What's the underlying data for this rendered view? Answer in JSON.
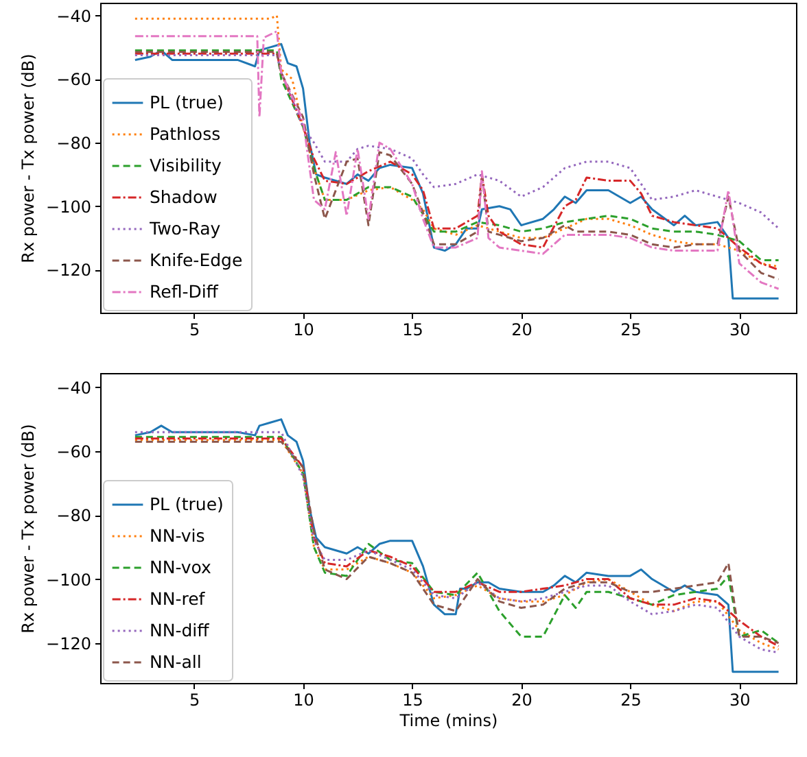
{
  "chart_data": [
    {
      "type": "line",
      "ylabel": "Rx power - Tx power (dB)",
      "xlim": [
        0.7,
        32.6
      ],
      "ylim": [
        -133.5,
        -36
      ],
      "xticks": [
        5,
        10,
        15,
        20,
        25,
        30
      ],
      "yticks": [
        -40,
        -60,
        -80,
        -100,
        -120
      ],
      "grid": false,
      "legend": "bottom left",
      "marker": "none",
      "series": [
        {
          "name": "PL (true)",
          "color": "#1f77b4",
          "line_style": "solid",
          "x": [
            2.3,
            3,
            3.5,
            4,
            5,
            6,
            7,
            7.8,
            8,
            8.5,
            9,
            9.3,
            9.7,
            10,
            10.3,
            10.6,
            11,
            12,
            12.5,
            13,
            13.5,
            14,
            15,
            15.5,
            16,
            16.5,
            17,
            17.5,
            18,
            18.2,
            19,
            19.5,
            20,
            21,
            21.5,
            22,
            22.5,
            23,
            24,
            25,
            25.5,
            26,
            27,
            27.5,
            28,
            29,
            29.5,
            29.7,
            31,
            31.8
          ],
          "values": [
            -54,
            -53,
            -51,
            -54,
            -54,
            -54,
            -54,
            -56,
            -51,
            -50,
            -49,
            -55,
            -56,
            -63,
            -80,
            -90,
            -91,
            -93,
            -90,
            -92,
            -88,
            -87,
            -88,
            -96,
            -113,
            -114,
            -112,
            -107,
            -107,
            -101,
            -100,
            -101,
            -106,
            -104,
            -101,
            -97,
            -99,
            -95,
            -95,
            -99,
            -97,
            -101,
            -106,
            -103,
            -106,
            -105,
            -110,
            -129,
            -129,
            -129
          ]
        },
        {
          "name": "Pathloss",
          "color": "#ff7f0e",
          "line_style": "dotted",
          "x": [
            2.3,
            8.5,
            8.8,
            9,
            9.5,
            10,
            10.5,
            11,
            12,
            13,
            14,
            15,
            15.5,
            16,
            17,
            18,
            19,
            20,
            21,
            22,
            23,
            24,
            25,
            26,
            27,
            28,
            29,
            30,
            31,
            31.8
          ],
          "values": [
            -41,
            -41,
            -40,
            -57,
            -60,
            -75,
            -88,
            -98,
            -98,
            -95,
            -94,
            -98,
            -101,
            -107,
            -109,
            -106,
            -108,
            -110,
            -110,
            -107,
            -104,
            -104,
            -106,
            -109,
            -111,
            -112,
            -112,
            -114,
            -118,
            -119
          ]
        },
        {
          "name": "Visibility",
          "color": "#2ca02c",
          "line_style": "dashed",
          "x": [
            2.3,
            8.8,
            9,
            10,
            10.5,
            11,
            12,
            13,
            14,
            15,
            16,
            17,
            18,
            19,
            20,
            21,
            22,
            23,
            24,
            25,
            26,
            27,
            28,
            29,
            30,
            31,
            31.8
          ],
          "values": [
            -51,
            -51,
            -60,
            -75,
            -88,
            -98,
            -98,
            -94,
            -94,
            -97,
            -108,
            -108,
            -105,
            -106,
            -108,
            -107,
            -105,
            -104,
            -103,
            -104,
            -107,
            -108,
            -108,
            -109,
            -111,
            -117,
            -117
          ]
        },
        {
          "name": "Shadow",
          "color": "#d62728",
          "line_style": "dashdot",
          "x": [
            2.3,
            8.8,
            9,
            10,
            10.5,
            11,
            12,
            13,
            14,
            15,
            15.5,
            16,
            17,
            18,
            18.2,
            18.5,
            19,
            20,
            21,
            22,
            22.5,
            23,
            24,
            25,
            25.5,
            26,
            27,
            28,
            29,
            30,
            31,
            31.8
          ],
          "values": [
            -52,
            -52,
            -58,
            -75,
            -85,
            -92,
            -93,
            -89,
            -86,
            -90,
            -95,
            -107,
            -107,
            -103,
            -90,
            -103,
            -108,
            -112,
            -113,
            -100,
            -98,
            -91,
            -92,
            -92,
            -96,
            -103,
            -105,
            -106,
            -107,
            -113,
            -118,
            -120
          ]
        },
        {
          "name": "Two-Ray",
          "color": "#9467bd",
          "line_style": "dotted",
          "x": [
            2.3,
            8.8,
            9,
            10,
            10.5,
            11,
            12,
            12.5,
            13,
            14,
            15,
            15.5,
            16,
            17,
            18,
            19,
            20,
            21,
            22,
            23,
            24,
            25,
            26,
            27,
            28,
            29,
            30,
            31,
            31.8
          ],
          "values": [
            -52.5,
            -52.5,
            -58,
            -75,
            -80,
            -86,
            -86,
            -82,
            -81,
            -82,
            -85,
            -90,
            -94,
            -93,
            -90,
            -92,
            -97,
            -94,
            -88,
            -86,
            -86,
            -88,
            -98,
            -97,
            -95,
            -97,
            -99,
            -102,
            -107
          ]
        },
        {
          "name": "Knife-Edge",
          "color": "#8c564b",
          "line_style": "dashed",
          "x": [
            2.3,
            8.8,
            9,
            10,
            10.5,
            11,
            12,
            12.5,
            13,
            13.5,
            14,
            15,
            15.5,
            16,
            17,
            18,
            18.2,
            18.5,
            19,
            20,
            21,
            22,
            22.5,
            23,
            24,
            25,
            26,
            27,
            28,
            29,
            29.5,
            30,
            31,
            31.8
          ],
          "values": [
            -51.5,
            -51.5,
            -58,
            -72,
            -90,
            -104,
            -86,
            -85,
            -106,
            -83,
            -84,
            -93,
            -102,
            -112,
            -112,
            -108,
            -90,
            -108,
            -109,
            -111,
            -110,
            -106,
            -108,
            -108,
            -108,
            -109,
            -112,
            -113,
            -112,
            -112,
            -97,
            -114,
            -121,
            -123
          ]
        },
        {
          "name": "Refl-Diff",
          "color": "#e377c2",
          "line_style": "dashdot",
          "x": [
            2.3,
            7.9,
            8,
            8.2,
            8.8,
            9,
            10,
            10.5,
            11,
            11.5,
            12,
            12.5,
            13,
            13.5,
            14,
            15,
            15.5,
            16,
            17,
            18,
            18.2,
            18.5,
            19,
            20,
            21,
            22,
            23,
            24,
            25,
            26,
            27,
            28,
            29,
            29.5,
            30,
            31,
            31.8
          ],
          "values": [
            -46.5,
            -46.5,
            -72,
            -47,
            -45,
            -58,
            -73,
            -98,
            -101,
            -83,
            -103,
            -82,
            -104,
            -80,
            -82,
            -93,
            -104,
            -113,
            -113,
            -110,
            -89,
            -110,
            -113,
            -114,
            -115,
            -109,
            -109,
            -109,
            -110,
            -113,
            -114,
            -114,
            -114,
            -95,
            -118,
            -124,
            -126
          ]
        }
      ]
    },
    {
      "type": "line",
      "xlabel": "Time (mins)",
      "ylabel": "Rx power - Tx power (dB)",
      "xlim": [
        0.7,
        32.6
      ],
      "ylim": [
        -132.5,
        -35.5
      ],
      "xticks": [
        5,
        10,
        15,
        20,
        25,
        30
      ],
      "yticks": [
        -40,
        -60,
        -80,
        -100,
        -120
      ],
      "grid": false,
      "legend": "bottom left",
      "marker": "none",
      "series": [
        {
          "name": "PL (true)",
          "color": "#1f77b4",
          "line_style": "solid",
          "x": [
            2.3,
            3,
            3.5,
            4,
            5,
            6,
            7,
            7.8,
            8,
            8.5,
            9,
            9.3,
            9.7,
            10,
            10.3,
            10.6,
            11,
            12,
            12.5,
            13,
            13.5,
            14,
            15,
            15.5,
            16,
            16.5,
            17,
            17.2,
            17.5,
            18,
            18.5,
            19,
            20,
            21,
            21.5,
            22,
            22.5,
            23,
            24,
            25,
            25.5,
            26,
            27,
            27.5,
            28,
            29,
            29.5,
            29.7,
            31,
            31.8
          ],
          "values": [
            -55,
            -54,
            -52,
            -54,
            -54,
            -54,
            -54,
            -55,
            -52,
            -51,
            -50,
            -55,
            -57,
            -63,
            -78,
            -87,
            -90,
            -92,
            -90,
            -92,
            -89,
            -88,
            -88,
            -96,
            -108,
            -111,
            -111,
            -103,
            -103,
            -101,
            -101,
            -103,
            -104,
            -104,
            -102,
            -99,
            -101,
            -98,
            -99,
            -99,
            -97,
            -100,
            -104,
            -102,
            -104,
            -105,
            -108,
            -129,
            -129,
            -129
          ]
        },
        {
          "name": "NN-vis",
          "color": "#ff7f0e",
          "line_style": "dotted",
          "x": [
            2.3,
            9,
            10,
            10.5,
            11,
            12,
            13,
            14,
            15,
            16,
            17,
            18,
            19,
            20,
            21,
            22,
            23,
            24,
            25,
            26,
            27,
            28,
            29,
            30,
            31,
            31.8
          ],
          "values": [
            -56.5,
            -56.5,
            -67,
            -90,
            -97,
            -97,
            -93,
            -95,
            -98,
            -106,
            -105,
            -102,
            -106,
            -107,
            -107,
            -105,
            -101,
            -100,
            -104,
            -108,
            -110,
            -107,
            -107,
            -116,
            -120,
            -122
          ]
        },
        {
          "name": "NN-vox",
          "color": "#2ca02c",
          "line_style": "dashed",
          "x": [
            2.3,
            9,
            10,
            10.5,
            11,
            12,
            13,
            14,
            15,
            16,
            17,
            18,
            19,
            20,
            21,
            22,
            22.5,
            23,
            24,
            25,
            26,
            27,
            28,
            29,
            29.5,
            30,
            31,
            31.8
          ],
          "values": [
            -55.5,
            -55.5,
            -67,
            -90,
            -98,
            -99,
            -89,
            -94,
            -95,
            -104,
            -105,
            -98,
            -110,
            -118,
            -118,
            -105,
            -109,
            -104,
            -104,
            -106,
            -108,
            -105,
            -104,
            -103,
            -99,
            -118,
            -116,
            -120
          ]
        },
        {
          "name": "NN-ref",
          "color": "#d62728",
          "line_style": "dashdot",
          "x": [
            2.3,
            9,
            10,
            10.5,
            11,
            12,
            13,
            14,
            15,
            16,
            17,
            18,
            19,
            20,
            21,
            22,
            23,
            24,
            25,
            26,
            27,
            28,
            29,
            30,
            31,
            31.8
          ],
          "values": [
            -56,
            -56,
            -65,
            -87,
            -95,
            -96,
            -91,
            -93,
            -96,
            -104,
            -104,
            -101,
            -104,
            -104,
            -103,
            -102,
            -100,
            -100,
            -106,
            -108,
            -108,
            -106,
            -107,
            -113,
            -118,
            -121
          ]
        },
        {
          "name": "NN-diff",
          "color": "#9467bd",
          "line_style": "dotted",
          "x": [
            2.3,
            9,
            10,
            10.5,
            11,
            12,
            13,
            14,
            15,
            16,
            17,
            18,
            19,
            20,
            21,
            22,
            23,
            24,
            25,
            26,
            27,
            28,
            29,
            30,
            31,
            31.8
          ],
          "values": [
            -54,
            -54,
            -68,
            -88,
            -94,
            -94,
            -91,
            -94,
            -97,
            -105,
            -106,
            -101,
            -106,
            -107,
            -106,
            -104,
            -102,
            -102,
            -107,
            -111,
            -110,
            -108,
            -109,
            -118,
            -122,
            -123
          ]
        },
        {
          "name": "NN-all",
          "color": "#8c564b",
          "line_style": "dashed",
          "x": [
            2.3,
            9,
            10,
            10.5,
            11,
            12,
            13,
            14,
            15,
            16,
            17,
            18,
            19,
            20,
            21,
            22,
            23,
            24,
            25,
            26,
            27,
            28,
            29,
            29.5,
            30,
            31,
            31.8
          ],
          "values": [
            -57,
            -57,
            -65,
            -85,
            -97,
            -100,
            -93,
            -95,
            -98,
            -108,
            -110,
            -100,
            -107,
            -109,
            -108,
            -103,
            -101,
            -101,
            -104,
            -104,
            -103,
            -102,
            -101,
            -95,
            -118,
            -118,
            -120
          ]
        }
      ]
    }
  ]
}
